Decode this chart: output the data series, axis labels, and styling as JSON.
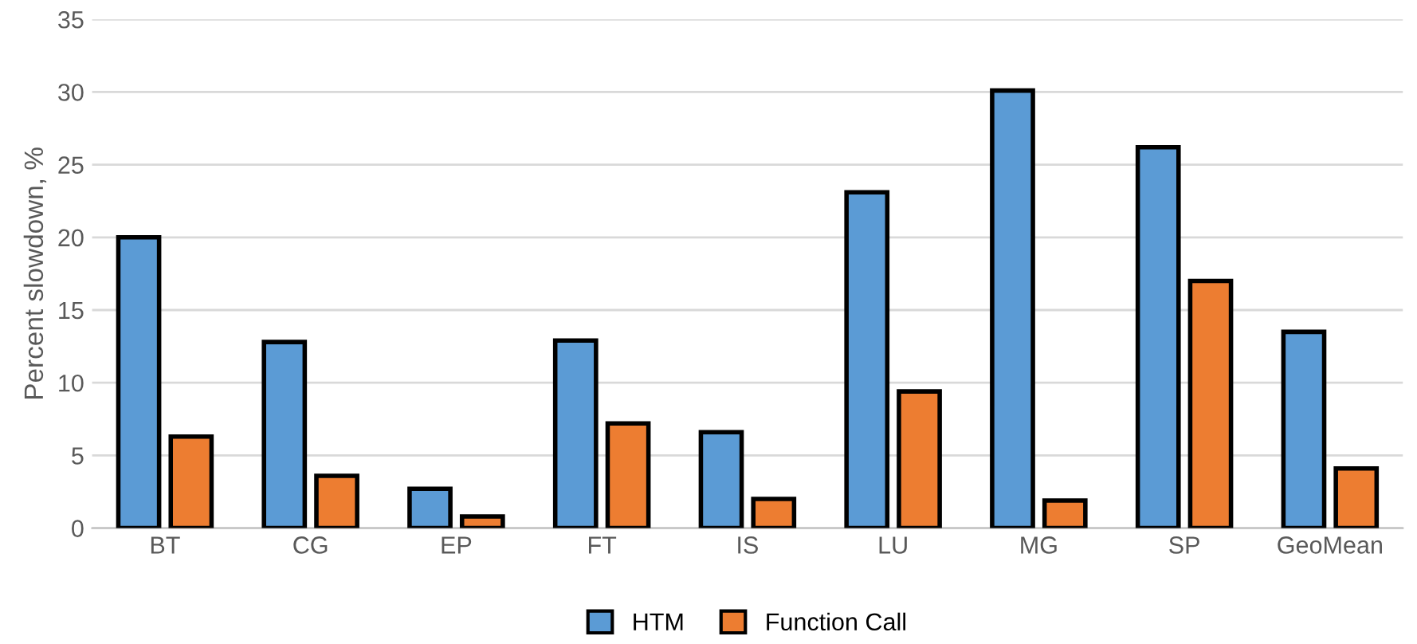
{
  "chart_data": {
    "type": "bar",
    "ylabel": "Percent slowdown, %",
    "categories": [
      "BT",
      "CG",
      "EP",
      "FT",
      "IS",
      "LU",
      "MG",
      "SP",
      "GeoMean"
    ],
    "series": [
      {
        "name": "HTM",
        "color": "#5b9bd5",
        "values": [
          20.0,
          12.8,
          2.7,
          12.9,
          6.6,
          23.1,
          30.1,
          26.2,
          13.5
        ]
      },
      {
        "name": "Function Call",
        "color": "#ed7d31",
        "values": [
          6.3,
          3.6,
          0.8,
          7.2,
          2.0,
          9.4,
          1.9,
          17.0,
          4.1
        ]
      }
    ],
    "ylim": [
      0,
      35
    ],
    "yticks": [
      0,
      5,
      10,
      15,
      20,
      25,
      30,
      35
    ],
    "grid": "y",
    "legend": "bottom"
  }
}
